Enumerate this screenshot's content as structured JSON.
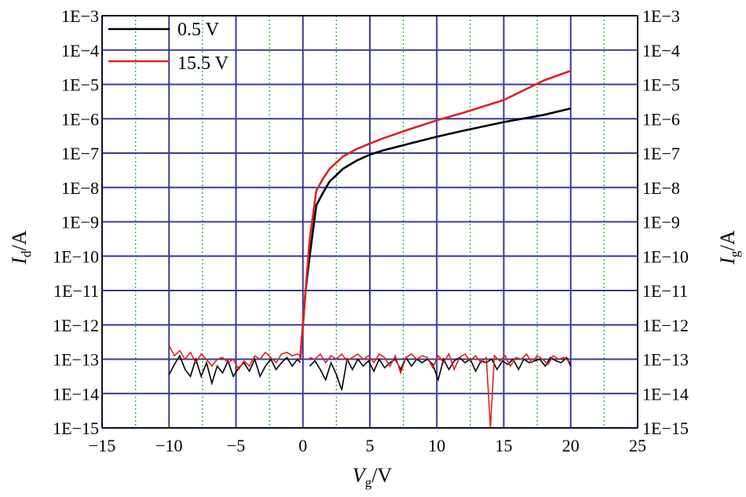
{
  "chart_data": {
    "type": "line",
    "title": "",
    "xlabel": {
      "main": "V",
      "sub": "g",
      "unit": "/V"
    },
    "ylabel_left": {
      "main": "I",
      "sub": "d",
      "unit": "/A"
    },
    "ylabel_right": {
      "main": "I",
      "sub": "g",
      "unit": "/A"
    },
    "xlim": [
      -15,
      25
    ],
    "x_ticks": [
      -15,
      -10,
      -5,
      0,
      5,
      10,
      15,
      20,
      25
    ],
    "x_tick_labels": [
      "−15",
      "−10",
      "−5",
      "0",
      "5",
      "10",
      "15",
      "20",
      "25"
    ],
    "y_scale": "log",
    "y_exp_range": [
      -15,
      -3
    ],
    "y_tick_labels": [
      "1E−3",
      "1E−4",
      "1E−5",
      "1E−6",
      "1E−7",
      "1E−8",
      "1E−9",
      "1E−10",
      "1E−11",
      "1E−12",
      "1E−13",
      "1E−14",
      "1E−15"
    ],
    "grid": {
      "major": true,
      "minor_x": true,
      "major_color": "#3a3a9a",
      "minor_color": "#3fae3f"
    },
    "legend_position": "top-left",
    "series": [
      {
        "name": "0.5 V",
        "color": "#000000",
        "transfer": {
          "x": [
            -0.2,
            0,
            0.2,
            0.5,
            1,
            1.5,
            2,
            3,
            4,
            5,
            6,
            8,
            10,
            12,
            15,
            18,
            20
          ],
          "y": [
            1e-13,
            1e-12,
            1e-11,
            1e-10,
            3e-09,
            7e-09,
            1.5e-08,
            3.5e-08,
            6e-08,
            9e-08,
            1.2e-07,
            1.9e-07,
            3e-07,
            4.5e-07,
            8e-07,
            1.3e-06,
            2e-06
          ]
        },
        "noise_exp": [
          [
            -10,
            -13.45
          ],
          [
            -9.6,
            -13.15
          ],
          [
            -9.2,
            -12.9
          ],
          [
            -8.8,
            -13.3
          ],
          [
            -8.4,
            -13.5
          ],
          [
            -8,
            -13.0
          ],
          [
            -7.6,
            -13.5
          ],
          [
            -7.2,
            -13.1
          ],
          [
            -6.8,
            -13.7
          ],
          [
            -6.4,
            -13.2
          ],
          [
            -6,
            -13.4
          ],
          [
            -5.6,
            -13.05
          ],
          [
            -5.2,
            -13.5
          ],
          [
            -4.8,
            -13.25
          ],
          [
            -4.4,
            -13.1
          ],
          [
            -4,
            -13.35
          ],
          [
            -3.6,
            -13.0
          ],
          [
            -3.2,
            -13.5
          ],
          [
            -2.8,
            -13.2
          ],
          [
            -2.4,
            -13.0
          ],
          [
            -2,
            -13.3
          ],
          [
            -1.6,
            -13.1
          ],
          [
            -1.2,
            -12.95
          ],
          [
            -0.8,
            -13.2
          ],
          [
            -0.4,
            -13.0
          ],
          [
            -0.2,
            -13.1
          ]
        ],
        "noise_exp_2": [
          [
            0.5,
            -13.2
          ],
          [
            0.9,
            -13.05
          ],
          [
            1.3,
            -13.3
          ],
          [
            1.7,
            -13.6
          ],
          [
            2.1,
            -13.1
          ],
          [
            2.5,
            -13.45
          ],
          [
            2.9,
            -13.9
          ],
          [
            3.3,
            -13.0
          ],
          [
            3.7,
            -13.3
          ],
          [
            4.1,
            -13.0
          ],
          [
            4.5,
            -13.2
          ],
          [
            4.9,
            -13.05
          ],
          [
            5.3,
            -13.35
          ],
          [
            5.7,
            -13.0
          ],
          [
            6.1,
            -13.25
          ],
          [
            6.5,
            -13.1
          ],
          [
            6.9,
            -13.0
          ],
          [
            7.3,
            -13.3
          ],
          [
            7.7,
            -12.95
          ],
          [
            8.1,
            -13.2
          ],
          [
            8.5,
            -13.0
          ],
          [
            8.9,
            -13.1
          ],
          [
            9.3,
            -13.0
          ],
          [
            9.7,
            -13.15
          ],
          [
            10.1,
            -13.6
          ],
          [
            10.5,
            -13.0
          ],
          [
            10.9,
            -13.3
          ],
          [
            11.3,
            -13.05
          ],
          [
            11.7,
            -12.95
          ],
          [
            12.1,
            -13.1
          ],
          [
            12.5,
            -13.0
          ],
          [
            12.9,
            -13.35
          ],
          [
            13.3,
            -13.05
          ],
          [
            13.7,
            -13.1
          ],
          [
            14.1,
            -13.0
          ],
          [
            14.5,
            -13.3
          ],
          [
            14.9,
            -13.05
          ],
          [
            15.3,
            -13.15
          ],
          [
            15.7,
            -13.0
          ],
          [
            16.1,
            -13.3
          ],
          [
            16.5,
            -13.0
          ],
          [
            16.9,
            -13.1
          ],
          [
            17.3,
            -13.05
          ],
          [
            17.7,
            -13.0
          ],
          [
            18.1,
            -13.2
          ],
          [
            18.5,
            -12.95
          ],
          [
            18.9,
            -13.05
          ],
          [
            19.3,
            -13.1
          ],
          [
            19.7,
            -12.95
          ],
          [
            20,
            -13.2
          ]
        ]
      },
      {
        "name": "15.5 V",
        "color": "#e02020",
        "transfer": {
          "x": [
            -0.2,
            0,
            0.2,
            0.5,
            1,
            1.5,
            2,
            3,
            4,
            5,
            6,
            8,
            10,
            12,
            15,
            18,
            20
          ],
          "y": [
            1e-13,
            1e-12,
            1e-11,
            3e-10,
            8e-09,
            1.8e-08,
            3.5e-08,
            8e-08,
            1.3e-07,
            1.9e-07,
            2.7e-07,
            5e-07,
            9e-07,
            1.5e-06,
            3.5e-06,
            1.3e-05,
            2.5e-05
          ]
        },
        "noise_exp": [
          [
            -10,
            -12.6
          ],
          [
            -9.6,
            -12.9
          ],
          [
            -9.2,
            -12.75
          ],
          [
            -8.8,
            -13.0
          ],
          [
            -8.4,
            -12.8
          ],
          [
            -8,
            -13.1
          ],
          [
            -7.6,
            -12.85
          ],
          [
            -7.2,
            -13.0
          ],
          [
            -6.8,
            -13.2
          ],
          [
            -6.4,
            -13.0
          ],
          [
            -6,
            -12.95
          ],
          [
            -5.6,
            -13.1
          ],
          [
            -5.2,
            -13.0
          ],
          [
            -4.8,
            -13.3
          ],
          [
            -4.4,
            -13.05
          ],
          [
            -4,
            -13.2
          ],
          [
            -3.6,
            -12.9
          ],
          [
            -3.2,
            -13.0
          ],
          [
            -2.8,
            -12.8
          ],
          [
            -2.4,
            -12.95
          ],
          [
            -2,
            -13.1
          ],
          [
            -1.6,
            -12.85
          ],
          [
            -1.2,
            -12.8
          ],
          [
            -0.8,
            -12.9
          ],
          [
            -0.4,
            -12.85
          ],
          [
            -0.2,
            -12.9
          ]
        ],
        "noise_exp_2": [
          [
            0.5,
            -12.95
          ],
          [
            0.9,
            -13.0
          ],
          [
            1.3,
            -12.85
          ],
          [
            1.7,
            -13.1
          ],
          [
            2.1,
            -12.9
          ],
          [
            2.5,
            -13.0
          ],
          [
            2.9,
            -12.85
          ],
          [
            3.3,
            -13.05
          ],
          [
            3.7,
            -12.95
          ],
          [
            4.1,
            -12.85
          ],
          [
            4.5,
            -13.0
          ],
          [
            4.9,
            -12.9
          ],
          [
            5.3,
            -13.1
          ],
          [
            5.7,
            -12.85
          ],
          [
            6.1,
            -12.95
          ],
          [
            6.5,
            -13.2
          ],
          [
            6.9,
            -12.9
          ],
          [
            7.3,
            -13.4
          ],
          [
            7.7,
            -12.95
          ],
          [
            8.1,
            -12.85
          ],
          [
            8.5,
            -13.0
          ],
          [
            8.9,
            -12.9
          ],
          [
            9.3,
            -12.95
          ],
          [
            9.7,
            -13.25
          ],
          [
            10.1,
            -12.9
          ],
          [
            10.5,
            -13.1
          ],
          [
            10.9,
            -12.85
          ],
          [
            11.3,
            -13.3
          ],
          [
            11.7,
            -12.95
          ],
          [
            12.1,
            -12.85
          ],
          [
            12.5,
            -13.05
          ],
          [
            12.9,
            -12.9
          ],
          [
            13.3,
            -13.1
          ],
          [
            13.7,
            -12.95
          ],
          [
            14.0,
            -15.0
          ],
          [
            14.3,
            -12.9
          ],
          [
            14.7,
            -13.05
          ],
          [
            15.1,
            -12.9
          ],
          [
            15.5,
            -13.2
          ],
          [
            15.9,
            -12.95
          ],
          [
            16.3,
            -13.0
          ],
          [
            16.7,
            -12.85
          ],
          [
            17.1,
            -13.1
          ],
          [
            17.5,
            -12.9
          ],
          [
            17.9,
            -13.0
          ],
          [
            18.3,
            -13.15
          ],
          [
            18.7,
            -12.9
          ],
          [
            19.1,
            -13.0
          ],
          [
            19.5,
            -12.95
          ],
          [
            20,
            -13.1
          ]
        ]
      }
    ]
  }
}
